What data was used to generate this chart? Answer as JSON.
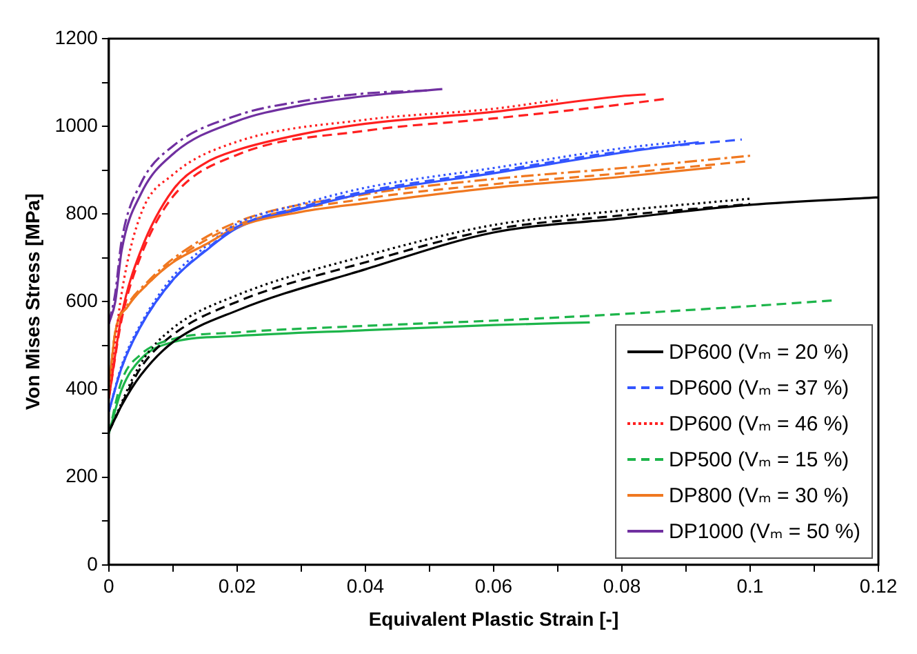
{
  "chart_data": {
    "type": "line",
    "xlabel": "Equivalent Plastic Strain [-]",
    "ylabel": "Von Mises Stress [MPa]",
    "xlim": [
      0,
      0.12
    ],
    "ylim": [
      0,
      1200
    ],
    "xticks": [
      0,
      {
        "value": 0.01,
        "label": null
      },
      0.02,
      {
        "value": 0.03,
        "label": null
      },
      0.04,
      {
        "value": 0.05,
        "label": null
      },
      0.06,
      {
        "value": 0.07,
        "label": null
      },
      0.08,
      {
        "value": 0.09,
        "label": null
      },
      0.1,
      {
        "value": 0.11,
        "label": null
      },
      0.12
    ],
    "yticks": [
      0,
      {
        "value": 100,
        "label": null
      },
      200,
      {
        "value": 300,
        "label": null
      },
      400,
      {
        "value": 500,
        "label": null
      },
      600,
      {
        "value": 700,
        "label": null
      },
      800,
      {
        "value": 900,
        "label": null
      },
      1000,
      {
        "value": 1100,
        "label": null
      },
      1200
    ],
    "grid": false,
    "legend": "bottom right",
    "marker": "none",
    "series": [
      {
        "name": "DP600 (Vₘ = 20 %)",
        "color": "#000000",
        "line_style": "solid",
        "x": [
          0,
          0.002,
          0.005,
          0.01,
          0.02,
          0.04,
          0.06,
          0.08,
          0.1,
          0.12
        ],
        "values": [
          304,
          364,
          433,
          508,
          580,
          674,
          758,
          790,
          821,
          838
        ]
      },
      {
        "name": "DP600 (Vₘ = 37 %)",
        "color": "#3355ff",
        "line_style": "dashed",
        "x": [
          0,
          0.002,
          0.005,
          0.01,
          0.015,
          0.02,
          0.03,
          0.04,
          0.06,
          0.08,
          0.0987
        ],
        "values": [
          350,
          450,
          545,
          650,
          717,
          771,
          816,
          852,
          897,
          943,
          970
        ]
      },
      {
        "name": "DP600 (Vₘ = 46 %)",
        "color": "#ff2020",
        "line_style": "dotted",
        "x": [
          0,
          0.002,
          0.005,
          0.01,
          0.02,
          0.04,
          0.06,
          0.07
        ],
        "values": [
          380,
          620,
          800,
          890,
          965,
          1015,
          1040,
          1060
        ]
      },
      {
        "name": "DP500 (Vₘ = 15 %)",
        "color": "#1db54a",
        "line_style": "dashed",
        "x": [
          0,
          0.002,
          0.005,
          0.01,
          0.02,
          0.04,
          0.06,
          0.08,
          0.1,
          0.113
        ],
        "values": [
          300,
          420,
          480,
          515,
          530,
          545,
          557,
          572,
          590,
          603
        ]
      },
      {
        "name": "DP800 (Vₘ = 30 %)",
        "color": "#f07820",
        "line_style": "solid",
        "x": [
          0,
          0.001,
          0.003,
          0.006,
          0.01,
          0.015,
          0.02,
          0.03,
          0.04,
          0.06,
          0.08,
          0.094
        ],
        "values": [
          400,
          530,
          590,
          640,
          690,
          730,
          770,
          805,
          825,
          860,
          885,
          906
        ]
      },
      {
        "name": "DP1000 (Vₘ = 50 %)",
        "color": "#7030a0",
        "line_style": "solid",
        "x": [
          0,
          0.001,
          0.002,
          0.005,
          0.01,
          0.02,
          0.03,
          0.04,
          0.052
        ],
        "values": [
          550,
          600,
          717,
          846,
          937,
          1012,
          1048,
          1069,
          1085
        ]
      },
      {
        "color": "#000000",
        "line_style": "dashed",
        "x": [
          0,
          0.005,
          0.01,
          0.02,
          0.04,
          0.06,
          0.08,
          0.1
        ],
        "values": [
          304,
          450,
          525,
          600,
          690,
          765,
          797,
          823
        ]
      },
      {
        "color": "#000000",
        "line_style": "dotted",
        "x": [
          0,
          0.005,
          0.01,
          0.02,
          0.04,
          0.06,
          0.08,
          0.1
        ],
        "values": [
          304,
          460,
          540,
          615,
          705,
          775,
          808,
          835
        ]
      },
      {
        "color": "#3355ff",
        "line_style": "solid",
        "x": [
          0,
          0.002,
          0.005,
          0.01,
          0.015,
          0.02,
          0.03,
          0.04,
          0.06,
          0.08,
          0.092
        ],
        "values": [
          350,
          450,
          545,
          650,
          715,
          768,
          812,
          848,
          893,
          940,
          964
        ]
      },
      {
        "color": "#3355ff",
        "line_style": "dotted",
        "x": [
          0,
          0.002,
          0.005,
          0.01,
          0.015,
          0.02,
          0.03,
          0.04,
          0.06,
          0.08,
          0.09
        ],
        "values": [
          350,
          455,
          550,
          658,
          725,
          778,
          823,
          860,
          905,
          950,
          966
        ]
      },
      {
        "color": "#ff2020",
        "line_style": "solid",
        "x": [
          0,
          0.002,
          0.005,
          0.01,
          0.015,
          0.02,
          0.03,
          0.04,
          0.06,
          0.08,
          0.0837
        ],
        "values": [
          380,
          570,
          717,
          855,
          916,
          946,
          982,
          1006,
          1033,
          1069,
          1073
        ]
      },
      {
        "color": "#ff2020",
        "line_style": "dashed",
        "x": [
          0,
          0.002,
          0.005,
          0.01,
          0.02,
          0.04,
          0.06,
          0.08,
          0.087
        ],
        "values": [
          380,
          560,
          705,
          840,
          935,
          990,
          1018,
          1050,
          1063
        ]
      },
      {
        "color": "#1db54a",
        "line_style": "solid",
        "x": [
          0,
          0.002,
          0.005,
          0.01,
          0.02,
          0.04,
          0.06,
          0.075
        ],
        "values": [
          300,
          400,
          470,
          508,
          522,
          535,
          547,
          553
        ]
      },
      {
        "color": "#f07820",
        "line_style": "dashed",
        "x": [
          0,
          0.001,
          0.003,
          0.006,
          0.01,
          0.02,
          0.04,
          0.06,
          0.08,
          0.1
        ],
        "values": [
          400,
          530,
          590,
          640,
          692,
          775,
          835,
          868,
          893,
          921
        ]
      },
      {
        "color": "#f07820",
        "line_style": "dashdot",
        "x": [
          0,
          0.001,
          0.003,
          0.006,
          0.01,
          0.02,
          0.04,
          0.06,
          0.08,
          0.1
        ],
        "values": [
          400,
          532,
          595,
          645,
          698,
          782,
          845,
          880,
          905,
          933
        ]
      },
      {
        "color": "#7030a0",
        "line_style": "dashdot",
        "x": [
          0,
          0.001,
          0.002,
          0.005,
          0.01,
          0.02,
          0.03,
          0.04,
          0.05
        ],
        "values": [
          550,
          620,
          740,
          870,
          955,
          1025,
          1057,
          1075,
          1082
        ]
      }
    ]
  }
}
